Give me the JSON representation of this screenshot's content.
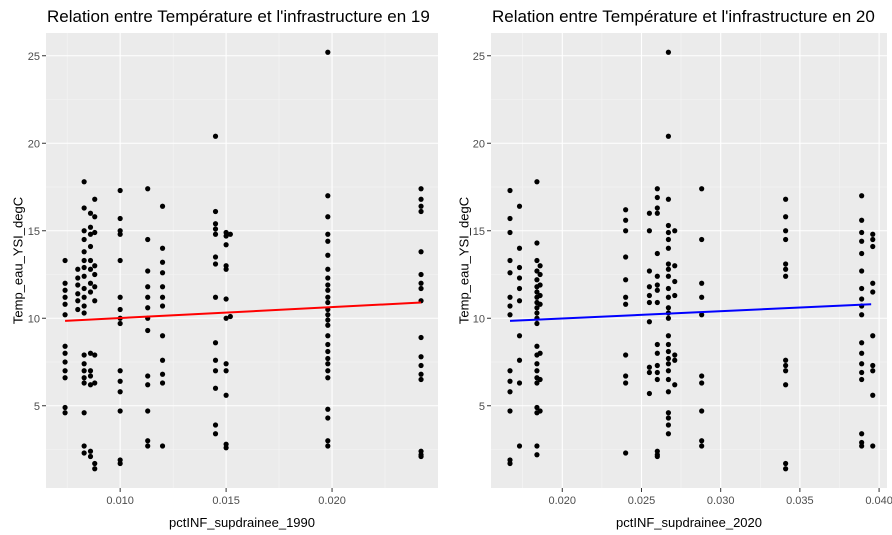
{
  "chart_data": [
    {
      "type": "scatter",
      "title": "Relation entre Température et l'infrastructure en 19",
      "xlabel": "pctINF_supdrainee_1990",
      "ylabel": "Temp_eau_YSI_degC",
      "xlim": [
        0.0065,
        0.025
      ],
      "ylim": [
        0.3,
        26.3
      ],
      "xticks": [
        0.01,
        0.015,
        0.02
      ],
      "xtick_labels": [
        "0.010",
        "0.015",
        "0.020"
      ],
      "yticks": [
        5,
        10,
        15,
        20,
        25
      ],
      "ytick_labels": [
        "5",
        "10",
        "15",
        "20",
        "25"
      ],
      "grid": true,
      "trend_color": "#ff0000",
      "trend": {
        "x": [
          0.0074,
          0.0242
        ],
        "y": [
          9.85,
          10.9
        ]
      },
      "series": [
        {
          "columns": [
            {
              "x": 0.0074,
              "y": [
                13.3,
                12.0,
                11.6,
                11.2,
                10.8,
                10.2,
                8.4,
                8.0,
                7.5,
                7.0,
                6.6,
                4.9,
                4.6
              ]
            },
            {
              "x": 0.008,
              "y": [
                12.8,
                12.3,
                11.9,
                11.4,
                11.0,
                10.5
              ]
            },
            {
              "x": 0.0083,
              "y": [
                17.8,
                16.3,
                15.0,
                14.5,
                13.8,
                13.3,
                12.9,
                12.4,
                11.7,
                11.2,
                10.7,
                10.3,
                7.9,
                7.4,
                7.0,
                6.6,
                6.3,
                4.6,
                2.7,
                2.3
              ]
            },
            {
              "x": 0.0086,
              "y": [
                16.0,
                15.2,
                14.8,
                14.1,
                13.3,
                12.8,
                12.0,
                11.5,
                8.0,
                7.0,
                6.7,
                6.2,
                2.4,
                2.1
              ]
            },
            {
              "x": 0.0088,
              "y": [
                16.8,
                15.8,
                14.9,
                13.0,
                12.5,
                11.8,
                11.0,
                7.9,
                6.3,
                1.7,
                1.4
              ]
            },
            {
              "x": 0.01,
              "y": [
                17.3,
                15.7,
                15.0,
                14.8,
                13.3,
                11.2,
                10.5,
                10.0,
                9.7,
                7.0,
                6.4,
                5.8,
                4.7,
                1.9,
                1.7
              ]
            },
            {
              "x": 0.0113,
              "y": [
                17.4,
                14.5,
                12.7,
                11.8,
                11.2,
                10.6,
                10.0,
                9.3,
                6.7,
                6.2,
                4.7,
                3.0,
                2.7
              ]
            },
            {
              "x": 0.012,
              "y": [
                16.4,
                14.0,
                13.2,
                12.6,
                11.8,
                11.2,
                10.7,
                9.0,
                7.6,
                6.8,
                6.3,
                2.7
              ]
            },
            {
              "x": 0.0145,
              "y": [
                20.4,
                16.1,
                15.4,
                15.1,
                14.8,
                13.5,
                13.1,
                11.2,
                8.6,
                7.6,
                7.0,
                6.0,
                3.9,
                3.4
              ]
            },
            {
              "x": 0.015,
              "y": [
                14.9,
                14.7,
                14.2,
                13.0,
                12.8,
                11.1,
                10.0,
                7.4,
                7.0,
                5.6,
                2.8,
                2.6
              ]
            },
            {
              "x": 0.0152,
              "y": [
                14.8,
                10.1
              ]
            },
            {
              "x": 0.0198,
              "y": [
                25.2,
                17.0,
                15.8,
                14.8,
                14.4,
                13.6,
                12.8,
                12.3,
                11.9,
                11.6,
                11.2,
                10.9,
                10.5,
                10.2,
                9.9,
                9.6,
                9.0,
                8.5,
                8.1,
                7.7,
                7.4,
                7.0,
                6.6,
                4.8,
                4.3,
                3.0,
                2.7
              ]
            },
            {
              "x": 0.0242,
              "y": [
                17.4,
                16.8,
                16.4,
                16.1,
                13.8,
                12.5,
                12.0,
                11.7,
                11.0,
                8.9,
                7.8,
                7.3,
                6.8,
                6.5,
                2.4,
                2.2,
                2.1
              ]
            }
          ]
        }
      ]
    },
    {
      "type": "scatter",
      "title": "Relation entre Température et l'infrastructure en 20",
      "xlabel": "pctINF_supdrainee_2020",
      "ylabel": "Temp_eau_YSI_degC",
      "xlim": [
        0.0155,
        0.0405
      ],
      "ylim": [
        0.3,
        26.3
      ],
      "xticks": [
        0.02,
        0.025,
        0.03,
        0.035,
        0.04
      ],
      "xtick_labels": [
        "0.020",
        "0.025",
        "0.030",
        "0.035",
        "0.040"
      ],
      "yticks": [
        5,
        10,
        15,
        20,
        25
      ],
      "ytick_labels": [
        "5",
        "10",
        "15",
        "20",
        "25"
      ],
      "grid": true,
      "trend_color": "#0000ff",
      "trend": {
        "x": [
          0.0167,
          0.0395
        ],
        "y": [
          9.85,
          10.8
        ]
      },
      "series": [
        {
          "columns": [
            {
              "x": 0.0167,
              "y": [
                17.3,
                15.7,
                14.9,
                13.3,
                12.6,
                11.2,
                10.7,
                10.2,
                7.0,
                6.4,
                5.8,
                4.7,
                1.9,
                1.7
              ]
            },
            {
              "x": 0.0173,
              "y": [
                16.4,
                14.0,
                12.9,
                12.3,
                11.7,
                11.0,
                9.0,
                7.6,
                6.3,
                2.7
              ]
            },
            {
              "x": 0.0184,
              "y": [
                17.8,
                14.3,
                13.3,
                12.7,
                12.2,
                11.8,
                11.5,
                11.2,
                10.9,
                10.6,
                10.3,
                10.0,
                9.7,
                8.4,
                7.9,
                7.4,
                7.0,
                6.6,
                6.3,
                4.9,
                4.6,
                2.7,
                2.2
              ]
            },
            {
              "x": 0.0186,
              "y": [
                13.0,
                12.5,
                11.9,
                11.3,
                10.8,
                8.0,
                6.5,
                4.7
              ]
            },
            {
              "x": 0.024,
              "y": [
                16.2,
                15.6,
                15.0,
                13.5,
                12.2,
                11.2,
                10.8,
                7.9,
                6.7,
                6.3,
                2.3
              ]
            },
            {
              "x": 0.0255,
              "y": [
                16.0,
                15.0,
                12.7,
                11.8,
                11.3,
                10.9,
                9.8,
                7.2,
                6.9,
                5.7
              ]
            },
            {
              "x": 0.026,
              "y": [
                17.4,
                16.9,
                16.3,
                16.0,
                13.7,
                12.4,
                11.9,
                11.6,
                10.9,
                8.5,
                8.0,
                7.3,
                6.9,
                6.5,
                2.4,
                2.2,
                2.1
              ]
            },
            {
              "x": 0.0267,
              "y": [
                25.2,
                20.4,
                16.8,
                15.3,
                14.9,
                14.5,
                14.0,
                13.1,
                12.8,
                12.4,
                11.7,
                11.2,
                10.6,
                10.3,
                10.0,
                9.0,
                8.5,
                8.1,
                7.7,
                7.4,
                7.0,
                6.5,
                5.8,
                4.6,
                4.3,
                3.9,
                3.4
              ]
            },
            {
              "x": 0.0271,
              "y": [
                15.0,
                13.0,
                12.1,
                11.3,
                7.9,
                7.6,
                6.2
              ]
            },
            {
              "x": 0.0288,
              "y": [
                17.4,
                14.5,
                12.0,
                11.2,
                10.2,
                6.7,
                6.3,
                4.7,
                3.0,
                2.7
              ]
            },
            {
              "x": 0.0341,
              "y": [
                16.8,
                15.8,
                15.0,
                14.5,
                13.1,
                12.8,
                12.4,
                7.6,
                7.3,
                7.0,
                6.2,
                1.7,
                1.4
              ]
            },
            {
              "x": 0.0389,
              "y": [
                17.0,
                15.6,
                14.9,
                14.4,
                13.7,
                12.7,
                11.7,
                11.1,
                10.7,
                10.2,
                8.6,
                8.0,
                7.4,
                6.9,
                6.5,
                3.4,
                2.9,
                2.7
              ]
            },
            {
              "x": 0.0396,
              "y": [
                14.8,
                14.5,
                14.1,
                12.0,
                11.5,
                9.0,
                7.3,
                7.0,
                5.6,
                2.7
              ]
            }
          ]
        }
      ]
    }
  ]
}
